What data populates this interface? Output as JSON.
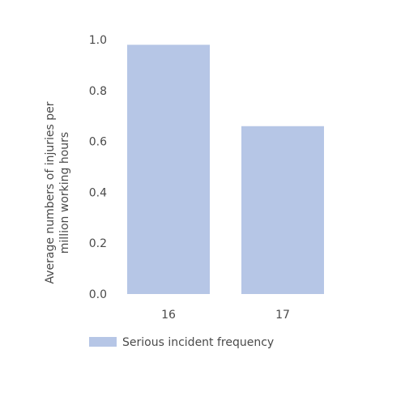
{
  "chart_data": {
    "type": "bar",
    "categories": [
      "16",
      "17"
    ],
    "series": [
      {
        "name": "Serious incident frequency",
        "values": [
          0.98,
          0.66
        ],
        "color": "#b6c6e6"
      }
    ],
    "yticks": [
      "0.0",
      "0.2",
      "0.4",
      "0.6",
      "0.8",
      "1.0"
    ],
    "ylim": [
      0,
      1.0
    ],
    "ylabel_lines": [
      "Average numbers of injuries per",
      "million working hours"
    ],
    "grid": false,
    "legend_position": "bottom-left"
  }
}
